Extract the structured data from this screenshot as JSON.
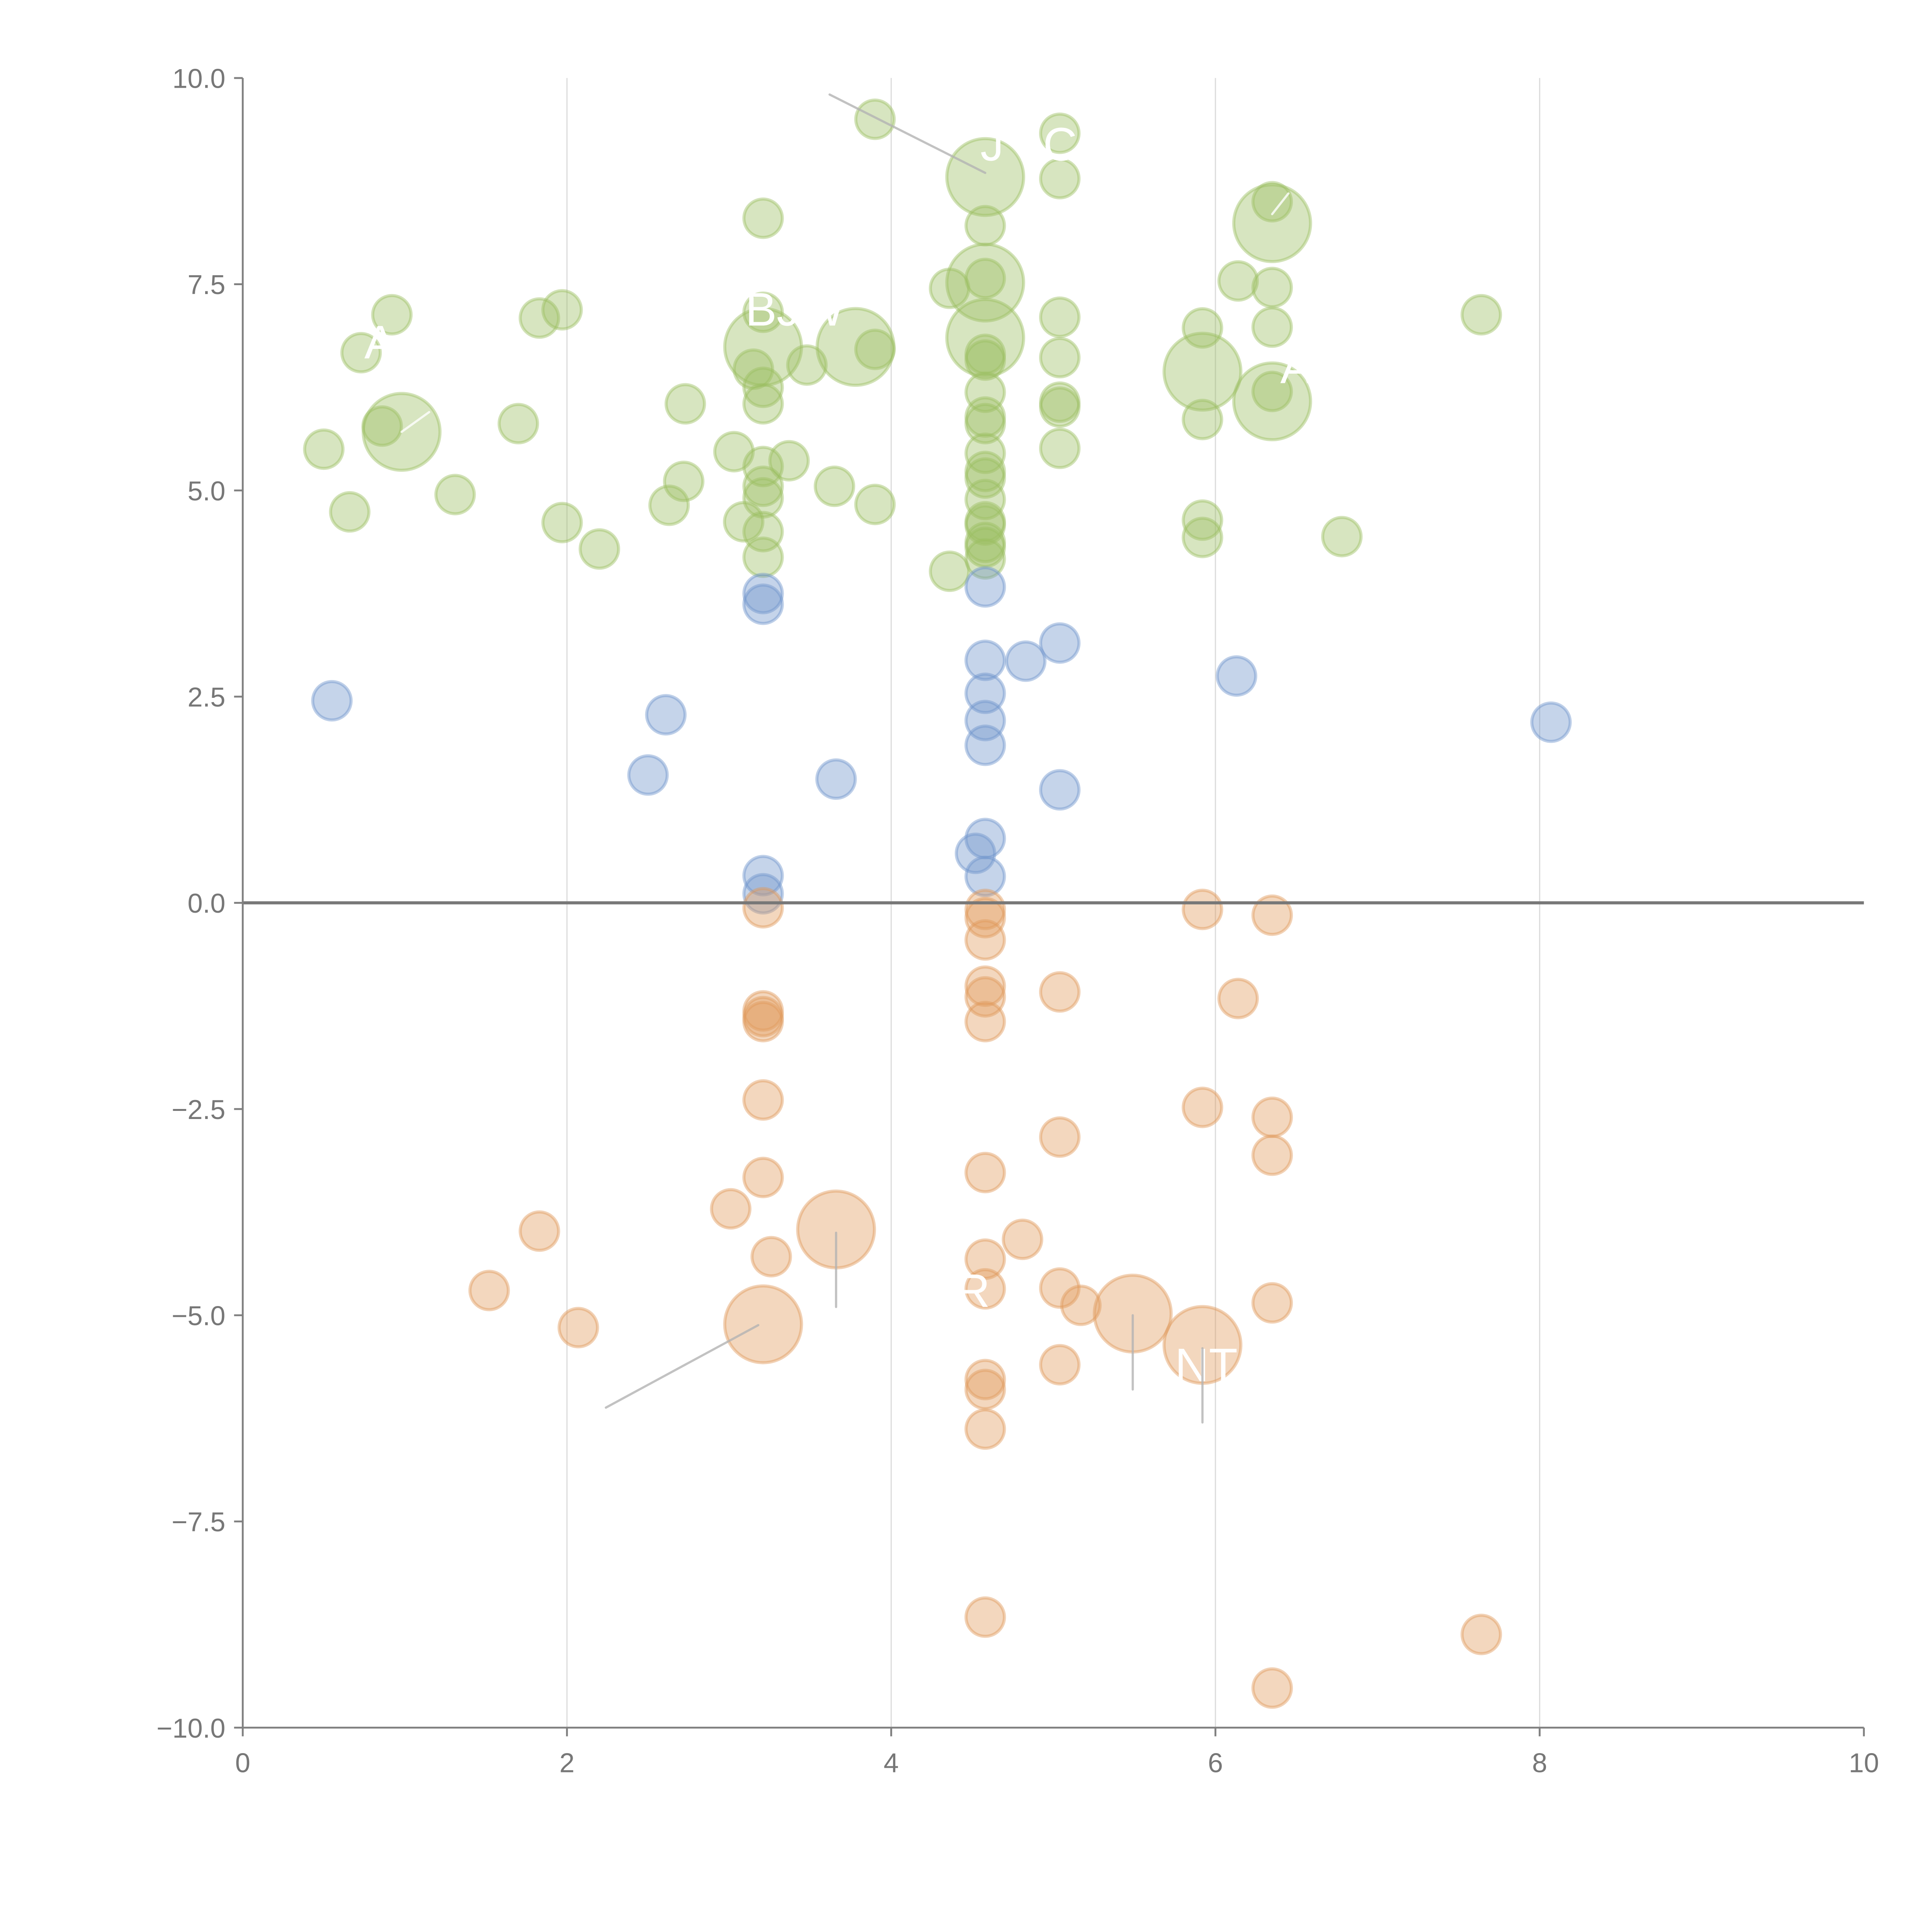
{
  "chart_data": {
    "type": "scatter",
    "title": "",
    "xlabel": "",
    "ylabel": "",
    "xlim": [
      0,
      10
    ],
    "ylim": [
      -10,
      10
    ],
    "xticks": [
      "0",
      "2",
      "4",
      "6",
      "8",
      "10"
    ],
    "xtick_values": [
      0,
      2,
      4,
      6,
      8,
      10
    ],
    "yticks": [
      "10.0",
      "7.5",
      "5.0",
      "2.5",
      "0.0",
      "−2.5",
      "−5.0",
      "−7.5",
      "−10.0"
    ],
    "ytick_values": [
      10,
      7.5,
      5,
      2.5,
      0,
      -2.5,
      -5,
      -7.5,
      -10
    ],
    "grid": "vertical",
    "legend": "none",
    "point_format": "[x, y, size]",
    "series": [
      {
        "name": "green",
        "color": "#9cbf62",
        "points": [
          [
            3.9,
            9.5,
            1
          ],
          [
            5.04,
            9.33,
            1
          ],
          [
            4.58,
            8.8,
            2
          ],
          [
            5.04,
            8.78,
            1
          ],
          [
            3.21,
            8.3,
            1
          ],
          [
            4.58,
            8.21,
            1
          ],
          [
            6.35,
            8.5,
            1
          ],
          [
            6.35,
            8.24,
            2
          ],
          [
            4.58,
            7.52,
            2
          ],
          [
            4.36,
            7.45,
            1
          ],
          [
            4.58,
            7.57,
            1
          ],
          [
            6.14,
            7.54,
            1
          ],
          [
            6.35,
            7.46,
            1
          ],
          [
            7.64,
            7.13,
            1
          ],
          [
            0.92,
            7.13,
            1
          ],
          [
            1.83,
            7.09,
            1
          ],
          [
            1.97,
            7.19,
            1
          ],
          [
            3.21,
            7.16,
            1
          ],
          [
            3.21,
            6.74,
            2
          ],
          [
            3.78,
            6.74,
            2
          ],
          [
            3.9,
            6.71,
            1
          ],
          [
            4.58,
            6.85,
            2
          ],
          [
            5.04,
            7.1,
            1
          ],
          [
            5.92,
            6.97,
            1
          ],
          [
            6.35,
            6.98,
            1
          ],
          [
            4.58,
            6.65,
            1
          ],
          [
            4.58,
            6.58,
            1
          ],
          [
            0.73,
            6.67,
            1
          ],
          [
            5.04,
            6.61,
            1
          ],
          [
            5.92,
            6.44,
            2
          ],
          [
            3.15,
            6.47,
            1
          ],
          [
            3.48,
            6.52,
            1
          ],
          [
            3.21,
            6.25,
            1
          ],
          [
            3.21,
            6.05,
            1
          ],
          [
            2.73,
            6.05,
            1
          ],
          [
            4.58,
            6.19,
            1
          ],
          [
            6.35,
            6.2,
            1
          ],
          [
            6.35,
            6.08,
            2
          ],
          [
            5.04,
            6.07,
            1
          ],
          [
            5.04,
            6.01,
            1
          ],
          [
            4.58,
            5.89,
            1
          ],
          [
            4.58,
            5.81,
            1
          ],
          [
            5.92,
            5.86,
            1
          ],
          [
            0.86,
            5.78,
            1
          ],
          [
            0.98,
            5.71,
            2
          ],
          [
            1.7,
            5.81,
            1
          ],
          [
            0.5,
            5.5,
            1
          ],
          [
            4.58,
            5.45,
            1
          ],
          [
            5.04,
            5.51,
            1
          ],
          [
            3.03,
            5.47,
            1
          ],
          [
            3.37,
            5.36,
            1
          ],
          [
            3.21,
            5.29,
            1
          ],
          [
            4.58,
            5.23,
            1
          ],
          [
            4.58,
            5.15,
            1
          ],
          [
            2.72,
            5.11,
            1
          ],
          [
            3.65,
            5.05,
            1
          ],
          [
            3.21,
            5.05,
            1
          ],
          [
            3.21,
            4.91,
            1
          ],
          [
            4.58,
            4.89,
            1
          ],
          [
            1.31,
            4.95,
            1
          ],
          [
            0.66,
            4.74,
            1
          ],
          [
            2.63,
            4.82,
            1
          ],
          [
            3.9,
            4.83,
            1
          ],
          [
            3.09,
            4.62,
            1
          ],
          [
            3.21,
            4.5,
            1
          ],
          [
            4.58,
            4.62,
            1
          ],
          [
            4.58,
            4.58,
            1
          ],
          [
            1.97,
            4.61,
            1
          ],
          [
            5.92,
            4.64,
            1
          ],
          [
            5.92,
            4.43,
            1
          ],
          [
            6.78,
            4.44,
            1
          ],
          [
            2.2,
            4.29,
            1
          ],
          [
            4.58,
            4.37,
            1
          ],
          [
            4.58,
            4.31,
            1
          ],
          [
            4.58,
            4.17,
            1
          ],
          [
            3.21,
            4.19,
            1
          ],
          [
            4.36,
            4.02,
            1
          ]
        ]
      },
      {
        "name": "blue",
        "color": "#6e94cb",
        "points": [
          [
            3.21,
            3.75,
            1
          ],
          [
            3.21,
            3.62,
            1
          ],
          [
            4.58,
            3.83,
            1
          ],
          [
            0.55,
            2.45,
            1
          ],
          [
            2.61,
            2.28,
            1
          ],
          [
            2.5,
            1.55,
            1
          ],
          [
            3.66,
            1.5,
            1
          ],
          [
            4.58,
            2.94,
            1
          ],
          [
            4.83,
            2.93,
            1
          ],
          [
            5.04,
            3.15,
            1
          ],
          [
            6.13,
            2.75,
            1
          ],
          [
            4.58,
            2.54,
            1
          ],
          [
            4.58,
            2.21,
            1
          ],
          [
            4.58,
            1.91,
            1
          ],
          [
            5.04,
            1.37,
            1
          ],
          [
            8.07,
            2.19,
            1
          ],
          [
            3.21,
            0.33,
            1
          ],
          [
            3.21,
            0.11,
            1
          ],
          [
            4.58,
            0.78,
            1
          ],
          [
            4.52,
            0.6,
            1
          ],
          [
            4.58,
            0.32,
            1
          ]
        ]
      },
      {
        "name": "orange",
        "color": "#e09a5c",
        "points": [
          [
            3.21,
            -0.06,
            1
          ],
          [
            4.58,
            -0.08,
            1
          ],
          [
            4.58,
            -0.18,
            1
          ],
          [
            4.58,
            -0.45,
            1
          ],
          [
            5.92,
            -0.08,
            1
          ],
          [
            6.35,
            -0.15,
            1
          ],
          [
            4.58,
            -1.01,
            1
          ],
          [
            4.58,
            -1.14,
            1
          ],
          [
            4.58,
            -1.44,
            1
          ],
          [
            5.04,
            -1.08,
            1
          ],
          [
            6.14,
            -1.16,
            1
          ],
          [
            3.21,
            -1.31,
            1
          ],
          [
            3.21,
            -1.38,
            1
          ],
          [
            3.21,
            -1.44,
            1
          ],
          [
            3.21,
            -2.39,
            1
          ],
          [
            5.92,
            -2.48,
            1
          ],
          [
            6.35,
            -2.6,
            1
          ],
          [
            6.35,
            -3.06,
            1
          ],
          [
            5.04,
            -2.84,
            1
          ],
          [
            3.21,
            -3.33,
            1
          ],
          [
            4.58,
            -3.27,
            1
          ],
          [
            3.01,
            -3.71,
            1
          ],
          [
            1.83,
            -3.98,
            1
          ],
          [
            3.66,
            -3.96,
            2
          ],
          [
            4.81,
            -4.08,
            1
          ],
          [
            3.26,
            -4.29,
            1
          ],
          [
            4.58,
            -4.32,
            1
          ],
          [
            1.52,
            -4.7,
            1
          ],
          [
            4.58,
            -4.68,
            1
          ],
          [
            5.04,
            -4.67,
            1
          ],
          [
            5.17,
            -4.88,
            1
          ],
          [
            6.35,
            -4.85,
            1
          ],
          [
            5.49,
            -4.98,
            2
          ],
          [
            2.07,
            -5.15,
            1
          ],
          [
            3.21,
            -5.11,
            2
          ],
          [
            5.92,
            -5.36,
            2
          ],
          [
            5.04,
            -5.6,
            1
          ],
          [
            4.58,
            -5.78,
            1
          ],
          [
            4.58,
            -5.9,
            1
          ],
          [
            4.58,
            -6.38,
            1
          ],
          [
            4.58,
            -8.66,
            1
          ],
          [
            7.64,
            -8.87,
            1
          ],
          [
            6.35,
            -9.52,
            1
          ]
        ]
      }
    ],
    "annotations": [
      {
        "text": "A",
        "x": 0.75,
        "y": 6.6,
        "line": [
          0.98,
          5.71,
          1.15,
          5.95
        ],
        "line_color": "#ffffff"
      },
      {
        "text": "BJW",
        "x": 3.1,
        "y": 7.0,
        "line": null,
        "line_color": null
      },
      {
        "text": "J I C I",
        "x": 4.55,
        "y": 9.0,
        "line": [
          3.62,
          9.8,
          4.58,
          8.85
        ],
        "line_color": "#b3b3b3"
      },
      {
        "text": "A",
        "x": 6.4,
        "y": 6.3,
        "line": [
          6.35,
          8.35,
          6.45,
          8.6
        ],
        "line_color": "#ffffff"
      },
      {
        "text": "R",
        "x": 4.4,
        "y": -4.9,
        "line": [
          3.66,
          -4.0,
          3.66,
          -4.9
        ],
        "line_color": "#b3b3b3"
      },
      {
        "text": "NT",
        "x": 5.75,
        "y": -5.8,
        "line": [
          5.49,
          -5.0,
          5.49,
          -5.9
        ],
        "line_color": "#b3b3b3"
      },
      {
        "text": "",
        "x": 5.92,
        "y": -6.3,
        "line": [
          5.92,
          -5.4,
          5.92,
          -6.3
        ],
        "line_color": "#b3b3b3"
      },
      {
        "text": "",
        "x": 2.2,
        "y": -6.1,
        "line": [
          3.18,
          -5.12,
          2.24,
          -6.12
        ],
        "line_color": "#b3b3b3"
      }
    ]
  }
}
